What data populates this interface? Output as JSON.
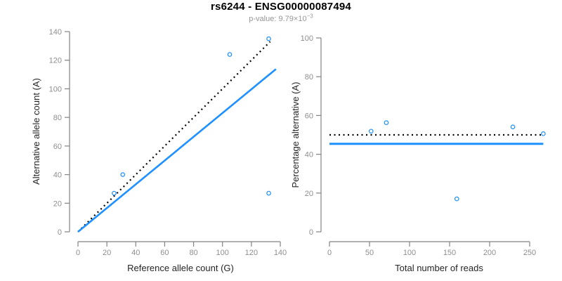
{
  "figure": {
    "title": "rs6244 - ENSG00000087494",
    "pvalue": {
      "label": "p-value: ",
      "mantissa": "9.79",
      "times": "×",
      "base": "10",
      "exponent": "−3"
    }
  },
  "style": {
    "point_color": "#1E90FF",
    "solid_line_color": "#1E90FF",
    "dotted_line_color": "#000000",
    "axis_color": "#838383",
    "tick_label_color": "#8E8E8E",
    "axis_title_color": "#262626",
    "title_color": "#000000",
    "subtitle_color": "#969696",
    "background": "#FFFFFF"
  },
  "chart_data": [
    {
      "name": "allele-count-scatter",
      "type": "scatter",
      "xlabel": "Reference allele count (G)",
      "ylabel": "Alternative allele count (A)",
      "xlim": [
        0,
        140
      ],
      "ylim": [
        0,
        140
      ],
      "xticks": [
        0,
        20,
        40,
        60,
        80,
        100,
        120,
        140
      ],
      "yticks": [
        0,
        20,
        40,
        60,
        80,
        100,
        120,
        140
      ],
      "grid": false,
      "legend": null,
      "points": [
        [
          25,
          27
        ],
        [
          31,
          40
        ],
        [
          105,
          124
        ],
        [
          132,
          135
        ],
        [
          132,
          27
        ]
      ],
      "lines": [
        {
          "name": "identity-line",
          "style": "dotted",
          "color": "#000000",
          "width": 2.2,
          "from": [
            0,
            0
          ],
          "to": [
            133,
            133
          ]
        },
        {
          "name": "fitted-ratio-line",
          "style": "solid",
          "color": "#1E90FF",
          "width": 2.6,
          "from": [
            0,
            0
          ],
          "to": [
            137,
            113.8
          ]
        }
      ]
    },
    {
      "name": "percentage-alternative-scatter",
      "type": "scatter",
      "xlabel": "Total number of reads",
      "ylabel": "Percentage alternative (A)",
      "xlim": [
        0,
        267
      ],
      "ylim": [
        0,
        100
      ],
      "xticks": [
        0,
        50,
        100,
        150,
        200,
        250
      ],
      "yticks": [
        0,
        20,
        40,
        60,
        80,
        100
      ],
      "grid": false,
      "legend": null,
      "points": [
        [
          52,
          51.9
        ],
        [
          71,
          56.3
        ],
        [
          159,
          17
        ],
        [
          229,
          54.1
        ],
        [
          267,
          50.6
        ]
      ],
      "lines": [
        {
          "name": "expected-50-percent-line",
          "style": "dotted",
          "color": "#000000",
          "width": 2.2,
          "from": [
            0,
            50
          ],
          "to": [
            267,
            50
          ]
        },
        {
          "name": "mean-ratio-line",
          "style": "solid",
          "color": "#1E90FF",
          "width": 3.0,
          "from": [
            0,
            45.4
          ],
          "to": [
            267,
            45.4
          ]
        }
      ]
    }
  ]
}
